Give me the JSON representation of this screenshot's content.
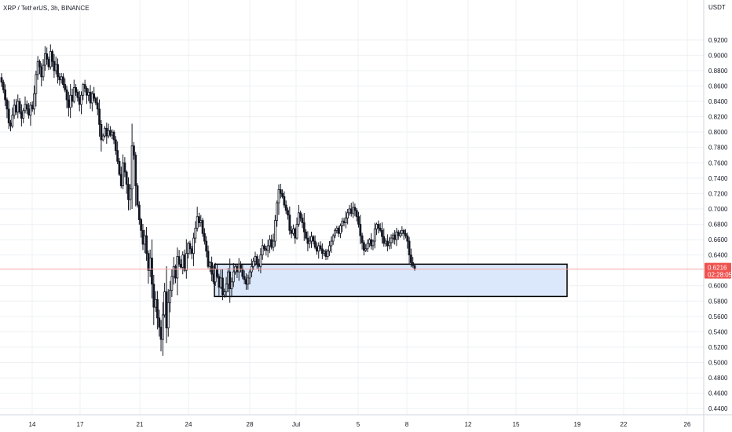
{
  "header": {
    "title": "XRP / TetherUS, 3h, BINANCE"
  },
  "colors": {
    "up": "#26a69a",
    "down": "#ef5350",
    "candle": "#131722",
    "grid": "#eef0f3",
    "price_line": "#f7a6a6",
    "badge_bg": "#ef5350",
    "zone_fill": "#dbe8fb",
    "zone_border": "#000000"
  },
  "chart_data": {
    "type": "candlestick",
    "symbol": "XRP / TetherUS",
    "interval": "3h",
    "exchange": "BINANCE",
    "y_unit": "USDT",
    "ylim": [
      0.432,
      0.972
    ],
    "x_ticks": [
      "14",
      "17",
      "21",
      "24",
      "28",
      "Jul",
      "5",
      "8",
      "12",
      "15",
      "19",
      "22",
      "26"
    ],
    "y_ticks": [
      "0.9200",
      "0.9000",
      "0.8800",
      "0.8600",
      "0.8400",
      "0.8200",
      "0.8000",
      "0.7800",
      "0.7600",
      "0.7400",
      "0.7200",
      "0.7000",
      "0.6800",
      "0.6600",
      "0.6400",
      "0.6000",
      "0.5800",
      "0.5600",
      "0.5400",
      "0.5200",
      "0.5000",
      "0.4800",
      "0.4600",
      "0.4400"
    ],
    "current_price": "0.6216",
    "countdown": "02:28:05",
    "closes": [
      0.865,
      0.855,
      0.842,
      0.83,
      0.812,
      0.808,
      0.822,
      0.835,
      0.826,
      0.84,
      0.826,
      0.818,
      0.828,
      0.836,
      0.83,
      0.822,
      0.835,
      0.83,
      0.85,
      0.875,
      0.892,
      0.885,
      0.872,
      0.887,
      0.902,
      0.895,
      0.885,
      0.905,
      0.892,
      0.88,
      0.888,
      0.872,
      0.868,
      0.872,
      0.862,
      0.855,
      0.842,
      0.832,
      0.848,
      0.84,
      0.858,
      0.852,
      0.845,
      0.836,
      0.848,
      0.862,
      0.857,
      0.848,
      0.852,
      0.838,
      0.85,
      0.844,
      0.838,
      0.83,
      0.81,
      0.79,
      0.795,
      0.805,
      0.795,
      0.802,
      0.796,
      0.8,
      0.79,
      0.776,
      0.762,
      0.745,
      0.73,
      0.76,
      0.748,
      0.732,
      0.712,
      0.726,
      0.782,
      0.77,
      0.73,
      0.705,
      0.686,
      0.672,
      0.654,
      0.665,
      0.642,
      0.62,
      0.636,
      0.602,
      0.572,
      0.582,
      0.558,
      0.546,
      0.53,
      0.562,
      0.592,
      0.545,
      0.578,
      0.594,
      0.612,
      0.625,
      0.61,
      0.638,
      0.628,
      0.624,
      0.64,
      0.62,
      0.642,
      0.655,
      0.648,
      0.642,
      0.662,
      0.675,
      0.69,
      0.682,
      0.685,
      0.668,
      0.658,
      0.645,
      0.625,
      0.63,
      0.615,
      0.605,
      0.622,
      0.612,
      0.598,
      0.61,
      0.588,
      0.592,
      0.602,
      0.618,
      0.596,
      0.605,
      0.618,
      0.625,
      0.618,
      0.628,
      0.622,
      0.612,
      0.608,
      0.602,
      0.61,
      0.618,
      0.625,
      0.632,
      0.638,
      0.628,
      0.625,
      0.64,
      0.652,
      0.648,
      0.646,
      0.652,
      0.66,
      0.65,
      0.658,
      0.685,
      0.708,
      0.725,
      0.72,
      0.716,
      0.705,
      0.698,
      0.692,
      0.672,
      0.668,
      0.674,
      0.662,
      0.68,
      0.695,
      0.688,
      0.682,
      0.67,
      0.662,
      0.655,
      0.658,
      0.664,
      0.658,
      0.65,
      0.645,
      0.652,
      0.648,
      0.642,
      0.645,
      0.638,
      0.645,
      0.652,
      0.658,
      0.665,
      0.672,
      0.675,
      0.668,
      0.678,
      0.684,
      0.682,
      0.688,
      0.695,
      0.7,
      0.694,
      0.702,
      0.698,
      0.69,
      0.68,
      0.665,
      0.656,
      0.646,
      0.648,
      0.655,
      0.66,
      0.652,
      0.658,
      0.674,
      0.68,
      0.675,
      0.672,
      0.664,
      0.655,
      0.658,
      0.652,
      0.656,
      0.662,
      0.666,
      0.66,
      0.67,
      0.665,
      0.668,
      0.672,
      0.668,
      0.665,
      0.658,
      0.64,
      0.63,
      0.626,
      0.6216
    ],
    "zone": {
      "x_start_date": "25",
      "x_end_date": "18",
      "top": 0.628,
      "bottom": 0.586
    }
  }
}
